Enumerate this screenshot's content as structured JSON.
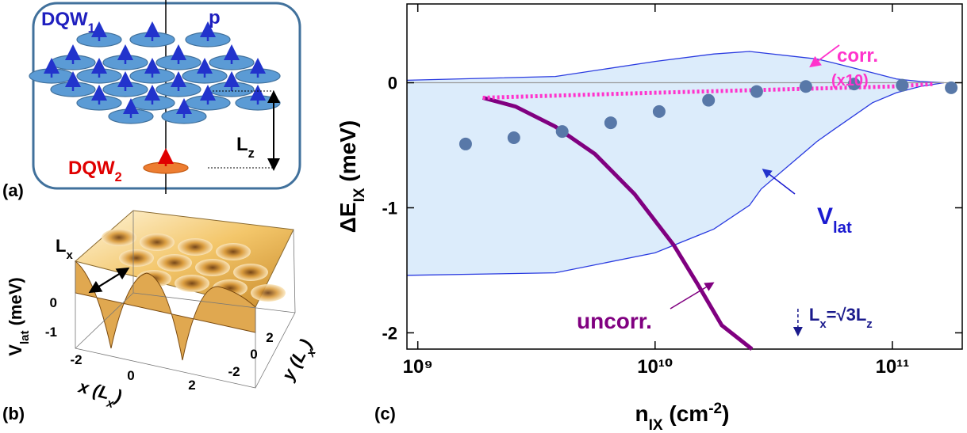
{
  "panels": {
    "a": "(a)",
    "b": "(b)",
    "c": "(c)"
  },
  "panel_a": {
    "top_label": [
      {
        "t": "DQW"
      },
      {
        "sub": "1"
      }
    ],
    "p": "p",
    "lz": [
      {
        "t": "L"
      },
      {
        "sub": "z"
      }
    ],
    "bottom_label": [
      {
        "t": "DQW"
      },
      {
        "sub": "2"
      }
    ]
  },
  "panel_b": {
    "z_label": [
      {
        "t": "V"
      },
      {
        "sub": "lat"
      },
      {
        "t": " (meV)"
      }
    ],
    "lx": [
      {
        "t": "L"
      },
      {
        "sub": "x"
      }
    ],
    "z_ticks": [
      0,
      -1
    ],
    "x_ticks": [
      -2,
      0,
      2
    ],
    "y_ticks": [
      2,
      0,
      -2
    ],
    "x_label": [
      {
        "t": "x ("
      },
      {
        "t": "L"
      },
      {
        "sub": "x"
      },
      {
        "t": ")"
      }
    ],
    "y_label": [
      {
        "t": "y ("
      },
      {
        "t": "L"
      },
      {
        "sub": "x"
      },
      {
        "t": ")"
      }
    ]
  },
  "chart_data": {
    "type": "line",
    "x_label": [
      {
        "t": "n"
      },
      {
        "sub": "IX"
      },
      {
        "t": " (cm"
      },
      {
        "sup": "-2"
      },
      {
        "t": ")"
      }
    ],
    "y_label": [
      {
        "t": "ΔE"
      },
      {
        "sub": "IX"
      },
      {
        "t": " (meV)"
      }
    ],
    "xscale": "log",
    "xlim": [
      900000000,
      197000000000
    ],
    "xticks": [
      {
        "value": 1000000000,
        "label": "10⁹"
      },
      {
        "value": 10000000000,
        "label": "10¹⁰"
      },
      {
        "value": 100000000000,
        "label": "10¹¹"
      }
    ],
    "ylim": [
      -2.13,
      0.63
    ],
    "yticks": [
      0,
      -1,
      -2
    ],
    "zero_line": true,
    "band": {
      "name": [
        {
          "t": "V"
        },
        {
          "sub": "lat"
        }
      ],
      "color": "#2a3be0",
      "fill": "#dcecfb",
      "x": [
        900000000,
        3800000000,
        10000000000,
        17700000000,
        25000000000,
        28000000000,
        48100000000,
        56100000000,
        82400000000,
        104000000000,
        131000000000,
        165000000000
      ],
      "upper": [
        0.02,
        0.05,
        0.17,
        0.23,
        0.25,
        0.24,
        0.19,
        0.16,
        0.08,
        0.03,
        0.01,
        0.0
      ],
      "lower": [
        -1.54,
        -1.52,
        -1.36,
        -1.17,
        -0.98,
        -0.85,
        -0.47,
        -0.38,
        -0.16,
        -0.08,
        -0.03,
        0.0
      ]
    },
    "series": [
      {
        "name": "uncorr.",
        "type": "line",
        "style": "solid",
        "color": "#800080",
        "x": [
          1880000000,
          2580000000,
          3790000000,
          5580000000,
          8190000000,
          12000000000,
          15100000000,
          19100000000,
          25600000000
        ],
        "values": [
          -0.12,
          -0.19,
          -0.35,
          -0.57,
          -0.89,
          -1.3,
          -1.61,
          -1.94,
          -2.13
        ]
      },
      {
        "name": "corr.",
        "note": "(x10)",
        "type": "line",
        "style": "dotted",
        "color": "#ff33cc",
        "x": [
          1880000000,
          10000000000,
          100000000000,
          150000000000
        ],
        "values": [
          -0.12,
          -0.08,
          -0.03,
          -0.01
        ]
      },
      {
        "type": "scatter",
        "color": "#5878a8",
        "x": [
          1590000000,
          2540000000,
          4060000000,
          6500000000,
          10400000000,
          16800000000,
          26800000000,
          43200000000,
          69000000000,
          110000000000,
          177000000000
        ],
        "values": [
          -0.49,
          -0.44,
          -0.39,
          -0.32,
          -0.23,
          -0.14,
          -0.07,
          -0.03,
          -0.01,
          -0.02,
          -0.04
        ]
      }
    ],
    "annotations": [
      {
        "text": [
          {
            "t": "L"
          },
          {
            "sub": "x"
          },
          {
            "t": "=√3L"
          },
          {
            "sub": "z"
          }
        ],
        "x": 40000000000,
        "color": "#1a1a8c"
      }
    ]
  }
}
